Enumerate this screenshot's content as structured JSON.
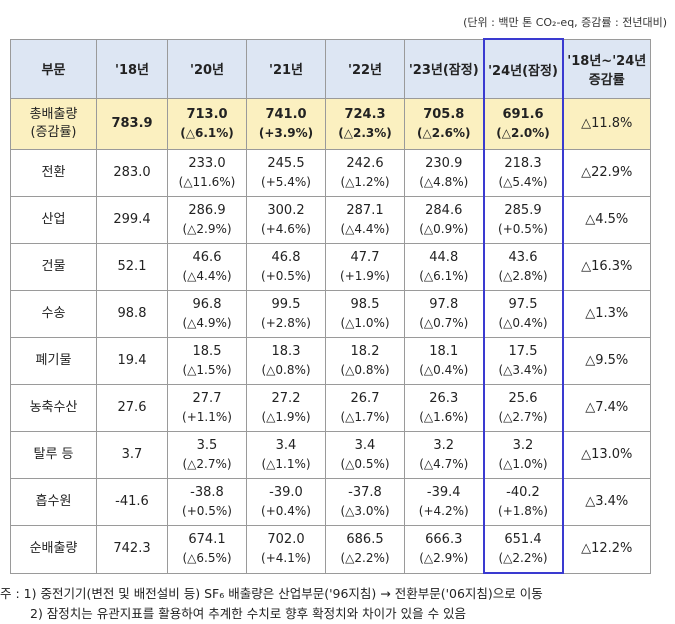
{
  "unit_note": "(단위 : 백만 톤 CO₂-eq, 증감률 : 전년대비)",
  "headers": [
    "부문",
    "'18년",
    "'20년",
    "'21년",
    "'22년",
    "'23년(잠정)",
    "'24년(잠정)",
    "'18년~'24년 증감률"
  ],
  "rows": [
    {
      "sector": "총배출량",
      "sector_sub": "(증감률)",
      "y18": "783.9",
      "y20": "713.0",
      "c20": "(△6.1%)",
      "y21": "741.0",
      "c21": "(+3.9%)",
      "y22": "724.3",
      "c22": "(△2.3%)",
      "y23": "705.8",
      "c23": "(△2.6%)",
      "y24": "691.6",
      "c24": "(△2.0%)",
      "total": "△11.8%"
    },
    {
      "sector": "전환",
      "sector_sub": "",
      "y18": "283.0",
      "y20": "233.0",
      "c20": "(△11.6%)",
      "y21": "245.5",
      "c21": "(+5.4%)",
      "y22": "242.6",
      "c22": "(△1.2%)",
      "y23": "230.9",
      "c23": "(△4.8%)",
      "y24": "218.3",
      "c24": "(△5.4%)",
      "total": "△22.9%"
    },
    {
      "sector": "산업",
      "sector_sub": "",
      "y18": "299.4",
      "y20": "286.9",
      "c20": "(△2.9%)",
      "y21": "300.2",
      "c21": "(+4.6%)",
      "y22": "287.1",
      "c22": "(△4.4%)",
      "y23": "284.6",
      "c23": "(△0.9%)",
      "y24": "285.9",
      "c24": "(+0.5%)",
      "total": "△4.5%"
    },
    {
      "sector": "건물",
      "sector_sub": "",
      "y18": "52.1",
      "y20": "46.6",
      "c20": "(△4.4%)",
      "y21": "46.8",
      "c21": "(+0.5%)",
      "y22": "47.7",
      "c22": "(+1.9%)",
      "y23": "44.8",
      "c23": "(△6.1%)",
      "y24": "43.6",
      "c24": "(△2.8%)",
      "total": "△16.3%"
    },
    {
      "sector": "수송",
      "sector_sub": "",
      "y18": "98.8",
      "y20": "96.8",
      "c20": "(△4.9%)",
      "y21": "99.5",
      "c21": "(+2.8%)",
      "y22": "98.5",
      "c22": "(△1.0%)",
      "y23": "97.8",
      "c23": "(△0.7%)",
      "y24": "97.5",
      "c24": "(△0.4%)",
      "total": "△1.3%"
    },
    {
      "sector": "폐기물",
      "sector_sub": "",
      "y18": "19.4",
      "y20": "18.5",
      "c20": "(△1.5%)",
      "y21": "18.3",
      "c21": "(△0.8%)",
      "y22": "18.2",
      "c22": "(△0.8%)",
      "y23": "18.1",
      "c23": "(△0.4%)",
      "y24": "17.5",
      "c24": "(△3.4%)",
      "total": "△9.5%"
    },
    {
      "sector": "농축수산",
      "sector_sub": "",
      "y18": "27.6",
      "y20": "27.7",
      "c20": "(+1.1%)",
      "y21": "27.2",
      "c21": "(△1.9%)",
      "y22": "26.7",
      "c22": "(△1.7%)",
      "y23": "26.3",
      "c23": "(△1.6%)",
      "y24": "25.6",
      "c24": "(△2.7%)",
      "total": "△7.4%"
    },
    {
      "sector": "탈루 등",
      "sector_sub": "",
      "y18": "3.7",
      "y20": "3.5",
      "c20": "(△2.7%)",
      "y21": "3.4",
      "c21": "(△1.1%)",
      "y22": "3.4",
      "c22": "(△0.5%)",
      "y23": "3.2",
      "c23": "(△4.7%)",
      "y24": "3.2",
      "c24": "(△1.0%)",
      "total": "△13.0%"
    },
    {
      "sector": "흡수원",
      "sector_sub": "",
      "y18": "-41.6",
      "y20": "-38.8",
      "c20": "(+0.5%)",
      "y21": "-39.0",
      "c21": "(+0.4%)",
      "y22": "-37.8",
      "c22": "(△3.0%)",
      "y23": "-39.4",
      "c23": "(+4.2%)",
      "y24": "-40.2",
      "c24": "(+1.8%)",
      "total": "△3.4%"
    },
    {
      "sector": "순배출량",
      "sector_sub": "",
      "y18": "742.3",
      "y20": "674.1",
      "c20": "(△6.5%)",
      "y21": "702.0",
      "c21": "(+4.1%)",
      "y22": "686.5",
      "c22": "(△2.2%)",
      "y23": "666.3",
      "c23": "(△2.9%)",
      "y24": "651.4",
      "c24": "(△2.2%)",
      "total": "△12.2%"
    }
  ],
  "notes": [
    "주 : 1) 중전기기(변전 및 배전설비 등) SF₆ 배출량은 산업부문('96지침) → 전환부문('06지침)으로 이동",
    "2) 잠정치는 유관지표를 활용하여 추계한 수치로 향후 확정치와 차이가 있을 수 있음"
  ]
}
